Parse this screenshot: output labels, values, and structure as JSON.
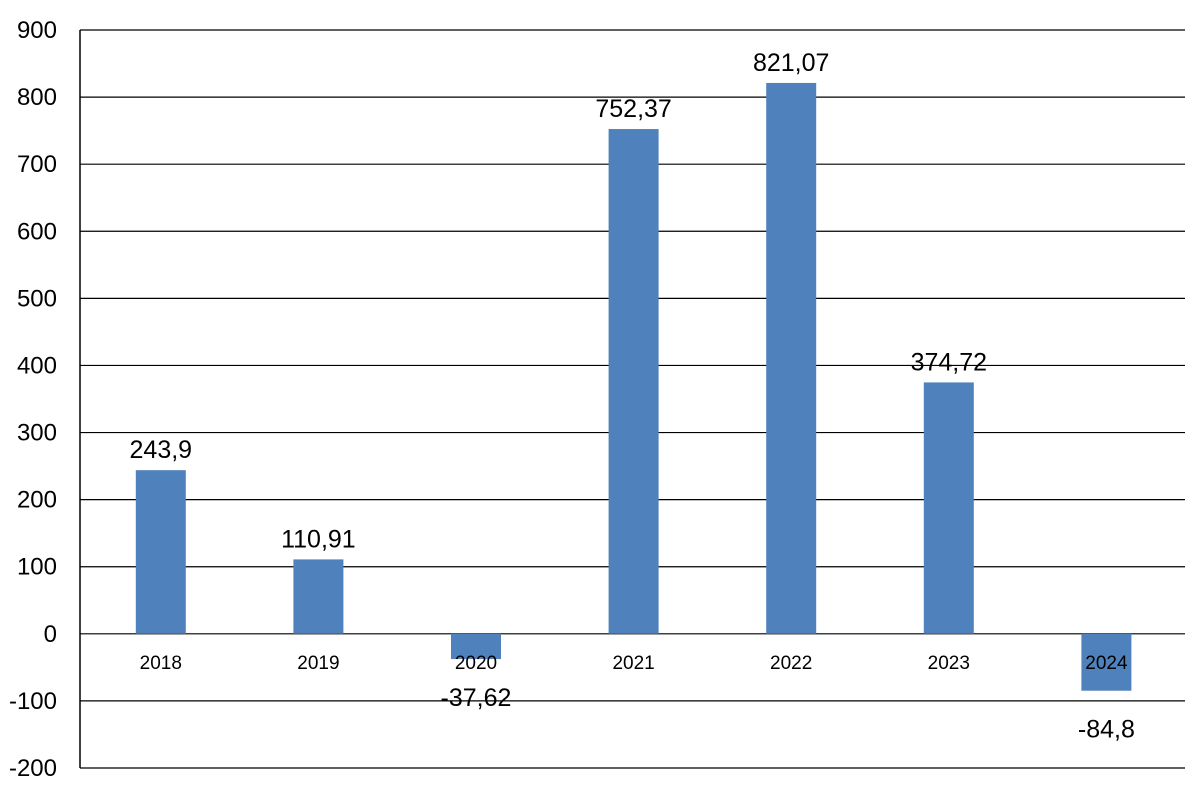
{
  "chart_data": {
    "type": "bar",
    "title": "",
    "xlabel": "",
    "ylabel": "",
    "categories": [
      "2018",
      "2019",
      "2020",
      "2021",
      "2022",
      "2023",
      "2024"
    ],
    "values": [
      243.9,
      110.91,
      -37.62,
      752.37,
      821.07,
      374.72,
      -84.8
    ],
    "data_labels": [
      "243,9",
      "110,91",
      "-37,62",
      "752,37",
      "821,07",
      "374,72",
      "-84,8"
    ],
    "yticks": [
      900,
      800,
      700,
      600,
      500,
      400,
      300,
      200,
      100,
      0,
      -100,
      -200
    ],
    "ytick_labels": [
      "900",
      "800",
      "700",
      "600",
      "500",
      "400",
      "300",
      "200",
      "100",
      "0",
      "-100",
      "-200"
    ],
    "ylim": [
      -200,
      900
    ],
    "grid": true,
    "legend": "none",
    "bar_color": "#4F81BD"
  }
}
